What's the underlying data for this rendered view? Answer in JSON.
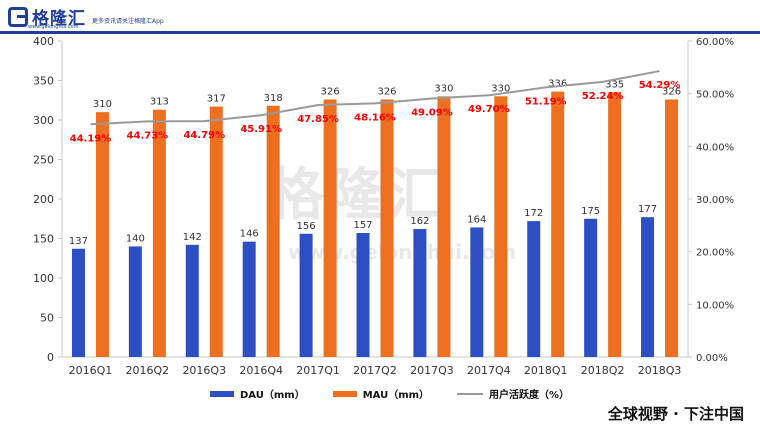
{
  "header": {
    "logo_text": "格隆汇",
    "logo_sub": "www.gelonghui.com",
    "tagline": "更多资讯请关注格隆汇App"
  },
  "watermark": {
    "text": "格隆汇",
    "url": "www.gelonghui.com"
  },
  "footer": {
    "tag": "全球视野 · 下注中国"
  },
  "colors": {
    "dau": "#2c4fc4",
    "mau": "#ed6f1f",
    "rate": "#9a9a9a",
    "rate_label": "#ff0000",
    "brand": "#1f3f99"
  },
  "chart_data": {
    "type": "bar",
    "categories": [
      "2016Q1",
      "2016Q2",
      "2016Q3",
      "2016Q4",
      "2017Q1",
      "2017Q2",
      "2017Q3",
      "2017Q4",
      "2018Q1",
      "2018Q2",
      "2018Q3"
    ],
    "series": [
      {
        "name": "DAU（mm）",
        "type": "bar",
        "axis": "left",
        "values": [
          137,
          140,
          142,
          146,
          156,
          157,
          162,
          164,
          172,
          175,
          177
        ]
      },
      {
        "name": "MAU（mm）",
        "type": "bar",
        "axis": "left",
        "values": [
          310,
          313,
          317,
          318,
          326,
          326,
          330,
          330,
          336,
          335,
          326
        ]
      },
      {
        "name": "用户活跃度（%）",
        "type": "line",
        "axis": "right",
        "values": [
          44.19,
          44.73,
          44.79,
          45.91,
          47.85,
          48.16,
          49.09,
          49.7,
          51.19,
          52.24,
          54.29
        ],
        "labels": [
          "44.19%",
          "44.73%",
          "44.79%",
          "45.91%",
          "47.85%",
          "48.16%",
          "49.09%",
          "49.70%",
          "51.19%",
          "52.24%",
          "54.29%"
        ]
      }
    ],
    "y_left": {
      "ylim": [
        0,
        400
      ],
      "ticks": [
        "0",
        "50",
        "100",
        "150",
        "200",
        "250",
        "300",
        "350",
        "400"
      ]
    },
    "y_right": {
      "ylim": [
        0,
        60
      ],
      "ticks": [
        "0.00%",
        "10.00%",
        "20.00%",
        "30.00%",
        "40.00%",
        "50.00%",
        "60.00%"
      ]
    },
    "legend_position": "bottom",
    "grid": false
  }
}
